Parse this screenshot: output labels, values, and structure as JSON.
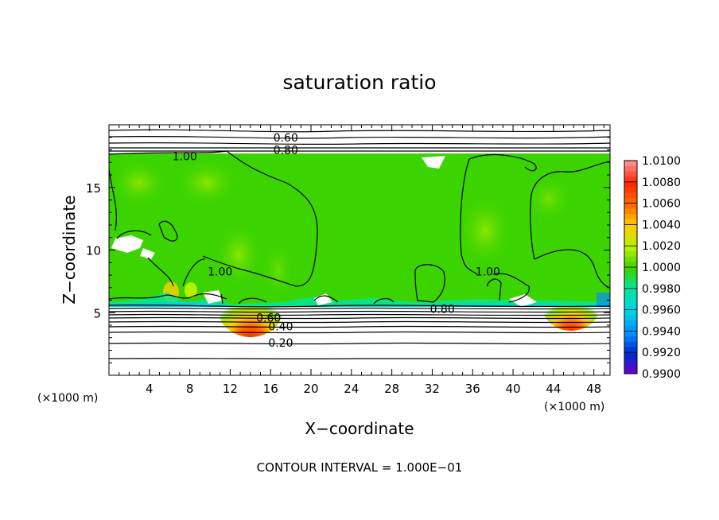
{
  "chart_data": {
    "type": "heatmap",
    "title": "saturation ratio",
    "xlabel": "X−coordinate",
    "ylabel": "Z−coordinate",
    "x_unit": "(×1000 m)",
    "y_unit": "(×1000 m)",
    "xlim": [
      0,
      49.6
    ],
    "ylim": [
      0,
      20
    ],
    "x_ticks": [
      4,
      8,
      12,
      16,
      20,
      24,
      28,
      32,
      36,
      40,
      44,
      48
    ],
    "y_ticks": [
      5,
      10,
      15
    ],
    "colorbar": {
      "levels": [
        "1.0100",
        "1.0080",
        "1.0060",
        "1.0040",
        "1.0020",
        "1.0000",
        "0.9980",
        "0.9960",
        "0.9940",
        "0.9920",
        "0.9900"
      ],
      "colors": [
        "#ff8c8c",
        "#ff2a00",
        "#ff6a00",
        "#ffcc00",
        "#b4f000",
        "#3cd400",
        "#00e6a0",
        "#00d2e6",
        "#0090ff",
        "#0028d2",
        "#6a00c8"
      ]
    },
    "contour_labels": [
      {
        "text": "0.60",
        "x": 17.5,
        "z": 19.0
      },
      {
        "text": "0.80",
        "x": 17.5,
        "z": 18.0
      },
      {
        "text": "1.00",
        "x": 7.5,
        "z": 17.5
      },
      {
        "text": "1.00",
        "x": 11.0,
        "z": 8.3
      },
      {
        "text": "1.00",
        "x": 37.5,
        "z": 8.3
      },
      {
        "text": "0.80",
        "x": 33.0,
        "z": 5.3
      },
      {
        "text": "0.60",
        "x": 15.8,
        "z": 4.6
      },
      {
        "text": "0.40",
        "x": 17.0,
        "z": 3.9
      },
      {
        "text": "0.20",
        "x": 17.0,
        "z": 2.6
      }
    ],
    "grid": false,
    "legend": "colorbar right",
    "footer": "CONTOUR INTERVAL = 1.000E−01"
  }
}
